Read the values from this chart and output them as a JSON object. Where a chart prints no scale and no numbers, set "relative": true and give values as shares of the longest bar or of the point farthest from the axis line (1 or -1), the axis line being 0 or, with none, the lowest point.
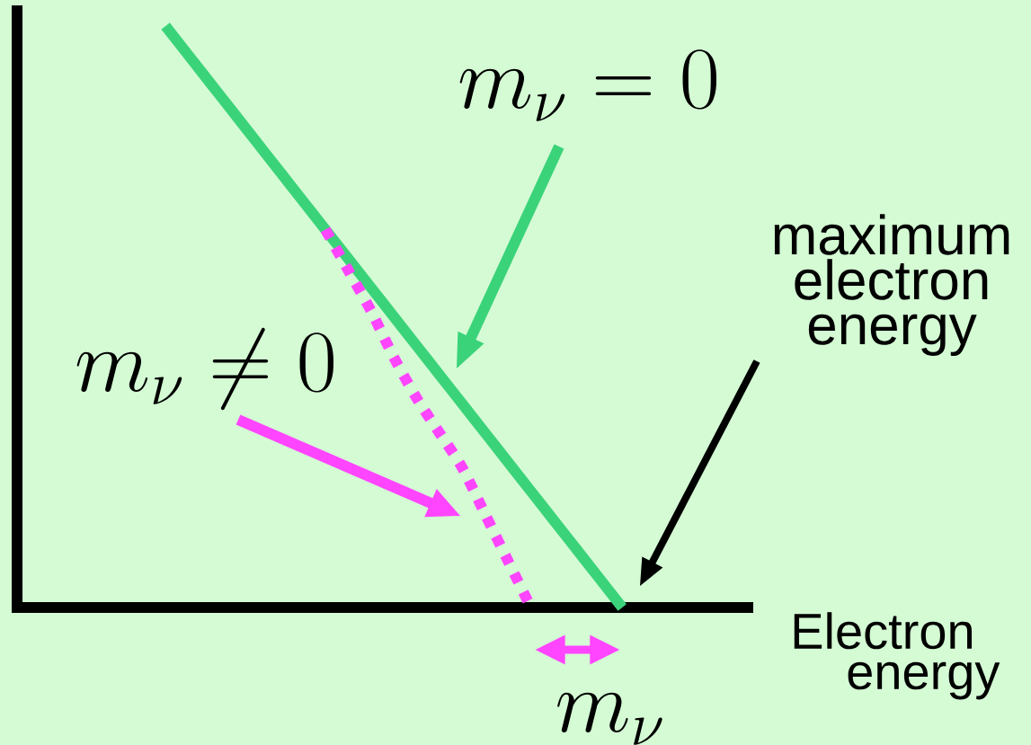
{
  "chart_data": {
    "type": "line",
    "relative": true,
    "xlabel": "Electron energy",
    "categories": [
      null,
      null,
      null,
      null,
      null,
      null,
      null,
      null,
      null,
      null,
      null,
      null,
      null,
      null,
      null,
      null,
      null,
      null,
      null,
      null,
      null,
      null,
      null,
      null,
      null,
      null,
      null,
      null,
      null,
      null,
      null,
      null
    ],
    "series": [
      {
        "color": "#3bd37a",
        "line_style": "solid",
        "values": [
          null,
          null,
          null,
          null,
          null,
          null,
          1,
          0.95,
          0.9,
          0.85,
          0.8,
          0.75,
          0.7,
          0.65,
          0.6,
          0.55,
          0.5,
          0.45,
          0.4,
          0.35,
          0.3,
          0.25,
          0.2,
          0.15,
          0.1,
          0.05,
          0,
          null,
          null,
          null,
          null,
          null
        ]
      },
      {
        "color": "#ff45ff",
        "line_style": "dotted",
        "values": [
          null,
          null,
          null,
          null,
          null,
          null,
          null,
          null,
          null,
          null,
          null,
          null,
          null,
          0.65,
          0.58,
          0.51,
          0.43,
          0.36,
          0.3,
          0.24,
          0.16,
          0.08,
          0,
          null,
          null,
          null,
          null,
          null,
          null,
          null,
          null,
          null
        ]
      }
    ],
    "annotations": [
      "m_\\nu = 0",
      "m_\\nu \\neq 0",
      "maximum electron energy",
      "m_\\nu"
    ]
  }
}
